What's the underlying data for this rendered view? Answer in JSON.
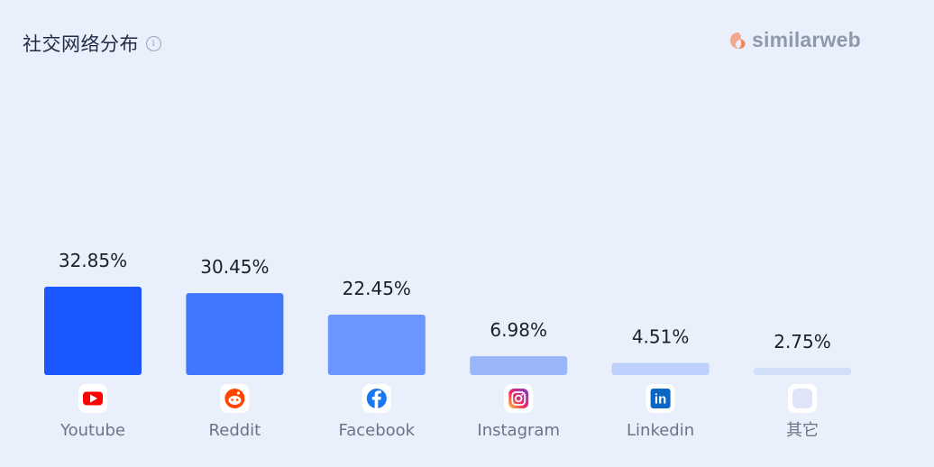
{
  "header": {
    "title": "社交网络分布",
    "info_icon": "info-icon",
    "brand": "similarweb"
  },
  "colors": {
    "background": "#eaf0fb",
    "youtube_red": "#ff0000",
    "reddit_orange": "#ff4500",
    "facebook_blue": "#1877f2",
    "linkedin_blue": "#0a66c2"
  },
  "chart_data": {
    "type": "bar",
    "categories": [
      "Youtube",
      "Reddit",
      "Facebook",
      "Instagram",
      "Linkedin",
      "其它"
    ],
    "values": [
      32.85,
      30.45,
      22.45,
      6.98,
      4.51,
      2.75
    ],
    "value_labels": [
      "32.85%",
      "30.45%",
      "22.45%",
      "6.98%",
      "4.51%",
      "2.75%"
    ],
    "icons": [
      "youtube-icon",
      "reddit-icon",
      "facebook-icon",
      "instagram-icon",
      "linkedin-icon",
      "other-icon"
    ],
    "bar_colors": [
      "#1a57ff",
      "#4177ff",
      "#6c95ff",
      "#9ab6fb",
      "#bcd0fb",
      "#d2dff9"
    ],
    "title": "社交网络分布",
    "xlabel": "",
    "ylabel": "",
    "legend": "none",
    "grid": false
  }
}
